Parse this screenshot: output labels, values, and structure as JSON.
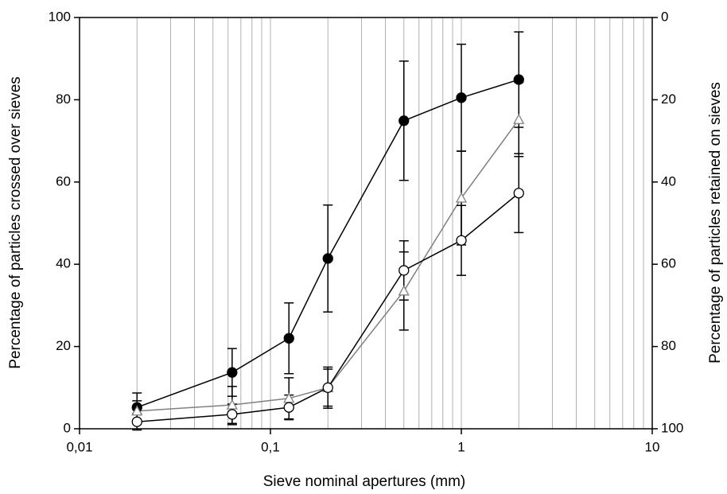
{
  "chart_data": {
    "type": "line",
    "x_label": "Sieve nominal apertures (mm)",
    "y_label": "Percentage of particles crossed over sieves",
    "y2_label": "Percentage of particles retained on sieves",
    "x": [
      0.02,
      0.063,
      0.125,
      0.2,
      0.5,
      1,
      2
    ],
    "xlog": true,
    "minor_grid": true,
    "xlim": [
      0.01,
      10
    ],
    "xticks": [
      {
        "value": 0.01,
        "label": "0,01"
      },
      {
        "value": 0.1,
        "label": "0,1"
      },
      1,
      10
    ],
    "ylim": [
      0,
      100
    ],
    "yticks": [
      0,
      20,
      40,
      60,
      80,
      100
    ],
    "y2lim": [
      100,
      0
    ],
    "y2ticks": [
      0,
      20,
      40,
      60,
      80,
      100
    ],
    "series": [
      {
        "color": "#000000",
        "line_color": "#000000",
        "marker": "circle",
        "filled": true,
        "values": [
          5.2,
          13.7,
          22,
          41.4,
          74.9,
          80.5,
          84.9
        ],
        "errors": [
          3.5,
          5.8,
          8.6,
          13,
          14.5,
          13,
          11.6
        ]
      },
      {
        "color": "#808080",
        "line_color": "#808080",
        "marker": "triangle",
        "filled": false,
        "values": [
          4.3,
          5.8,
          7.4,
          10,
          33.5,
          56.1,
          75.2
        ],
        "errors": [
          2.5,
          4.5,
          5,
          4.5,
          9.5,
          11.4,
          9
        ]
      },
      {
        "color": "#000000",
        "line_color": "#000000",
        "marker": "circle",
        "filled": false,
        "values": [
          1.7,
          3.5,
          5.2,
          10,
          38.5,
          45.8,
          57.3
        ],
        "errors": [
          2,
          2.5,
          3,
          5,
          7.2,
          8.5,
          9.6
        ]
      }
    ]
  }
}
